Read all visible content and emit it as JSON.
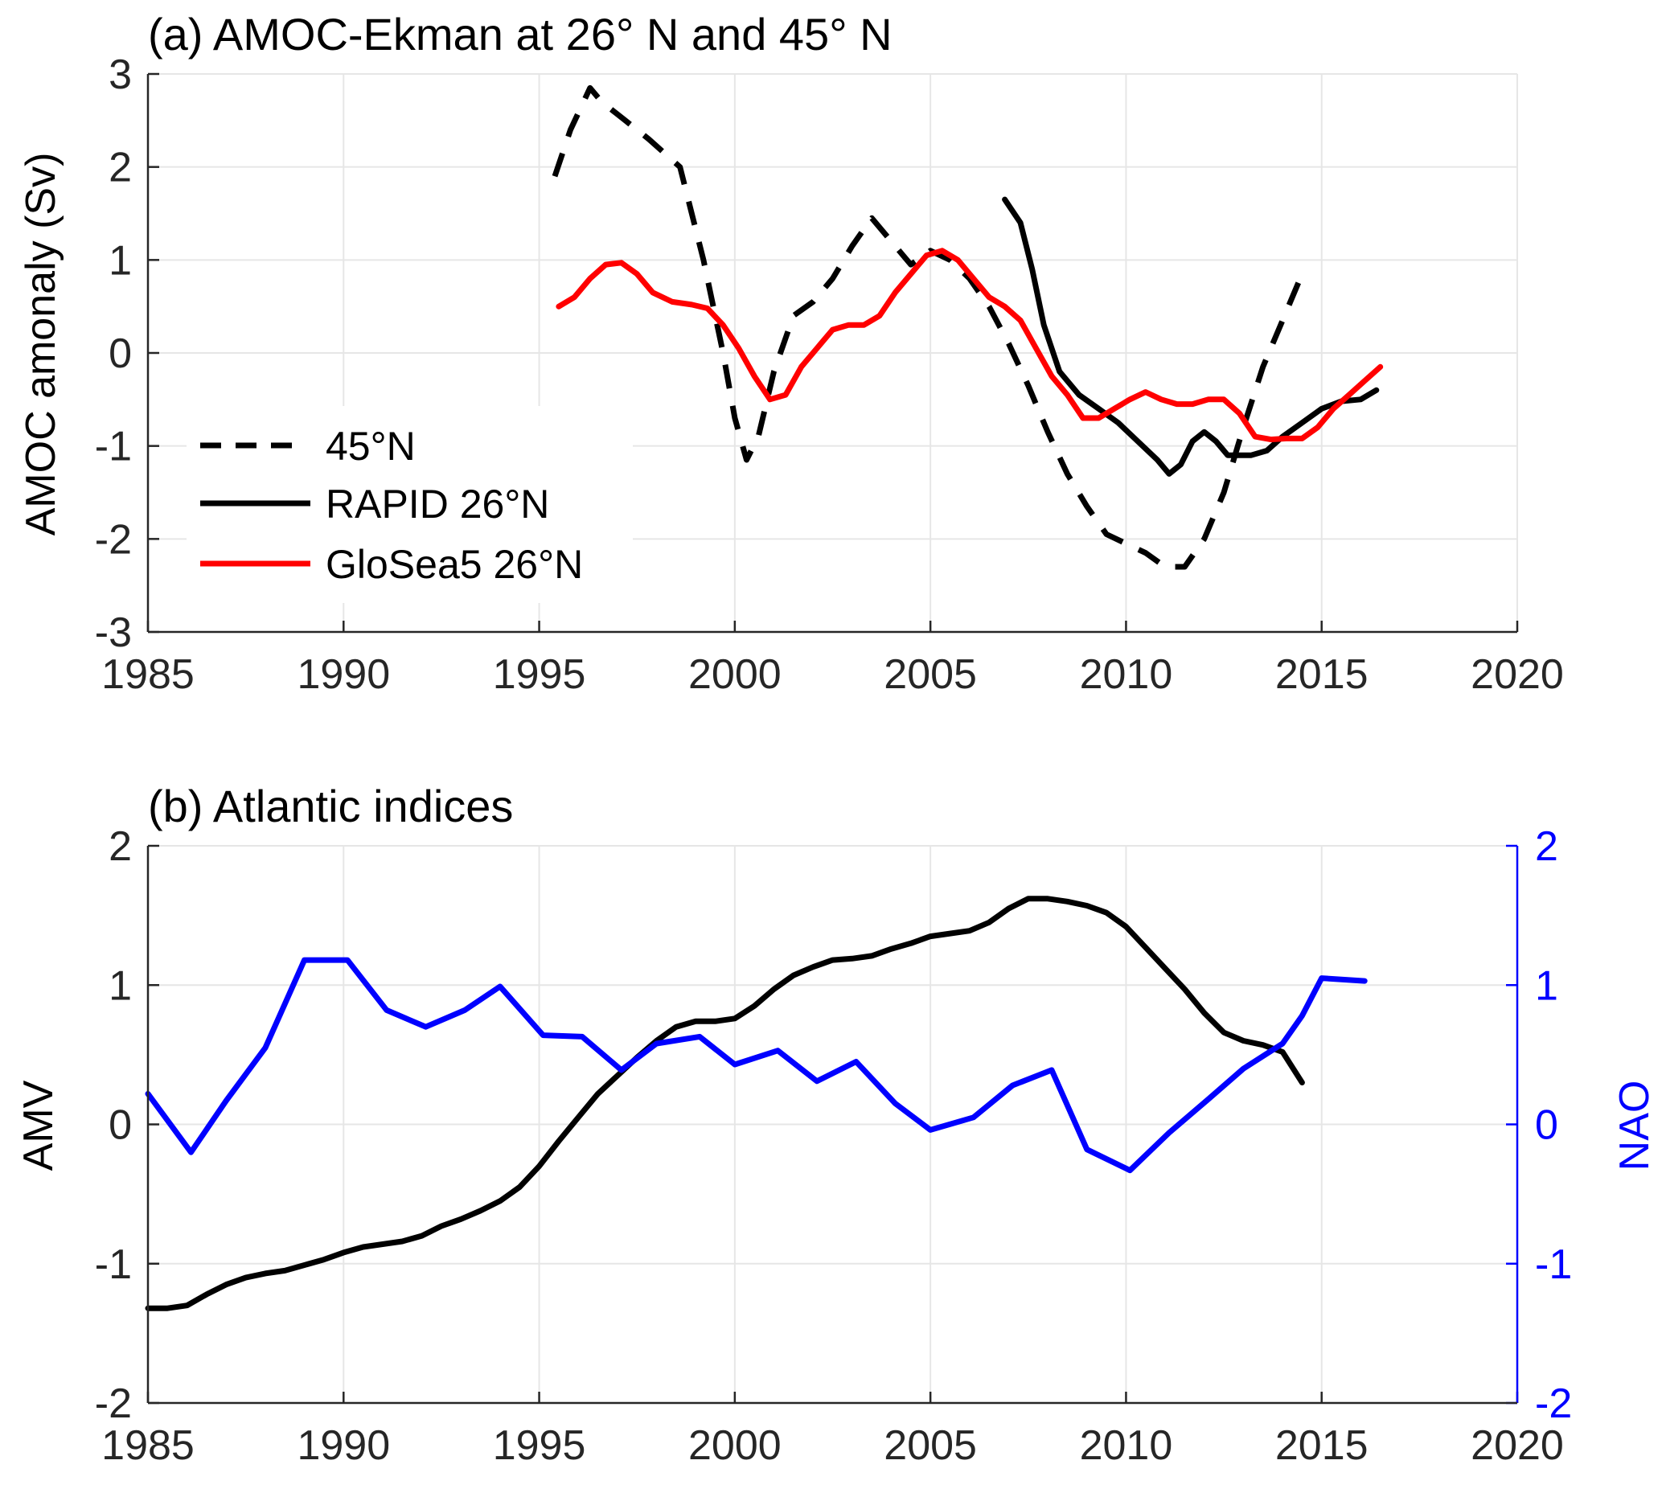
{
  "chart_data": [
    {
      "type": "line",
      "title": "(a) AMOC-Ekman at 26° N and 45° N",
      "ylabel": "AMOC amonaly (Sv)",
      "xlim": [
        1985,
        2020
      ],
      "ylim": [
        -3,
        3
      ],
      "xticks": [
        "1985",
        "1990",
        "1995",
        "2000",
        "2005",
        "2010",
        "2015",
        "2020"
      ],
      "yticks": [
        "3",
        "2",
        "1",
        "0",
        "-1",
        "-2",
        "-3"
      ],
      "grid": true,
      "legend_position": "lower-left",
      "series": [
        {
          "name": "45°N",
          "color": "#000000",
          "style": "dashed",
          "x": [
            1995.4,
            1995.8,
            1996.3,
            1996.6,
            1997.2,
            1997.8,
            1998.6,
            1999.2,
            1999.7,
            2000.0,
            2000.3,
            2000.6,
            2001.0,
            2001.5,
            2002.0,
            2002.5,
            2003.0,
            2003.5,
            2004.0,
            2004.5,
            2005.0,
            2005.5,
            2006.0,
            2006.5,
            2007.0,
            2007.5,
            2008.0,
            2008.5,
            2009.0,
            2009.5,
            2010.0,
            2010.5,
            2011.0,
            2011.5,
            2012.0,
            2012.5,
            2013.0,
            2013.5,
            2014.0,
            2014.5
          ],
          "y": [
            1.9,
            2.4,
            2.85,
            2.7,
            2.5,
            2.3,
            2.0,
            1.0,
            0.0,
            -0.7,
            -1.15,
            -0.9,
            -0.2,
            0.4,
            0.55,
            0.8,
            1.15,
            1.45,
            1.2,
            0.95,
            1.1,
            1.0,
            0.8,
            0.5,
            0.1,
            -0.35,
            -0.85,
            -1.3,
            -1.65,
            -1.95,
            -2.05,
            -2.15,
            -2.3,
            -2.3,
            -2.0,
            -1.5,
            -0.8,
            -0.15,
            0.35,
            0.85
          ]
        },
        {
          "name": "RAPID 26°N",
          "color": "#000000",
          "style": "solid",
          "x": [
            2006.9,
            2007.3,
            2007.6,
            2007.9,
            2008.3,
            2008.8,
            2009.3,
            2009.8,
            2010.3,
            2010.8,
            2011.1,
            2011.4,
            2011.7,
            2012.0,
            2012.3,
            2012.6,
            2012.9,
            2013.2,
            2013.6,
            2014.0,
            2014.5,
            2015.0,
            2015.5,
            2016.0,
            2016.4
          ],
          "y": [
            1.65,
            1.4,
            0.9,
            0.3,
            -0.2,
            -0.45,
            -0.6,
            -0.75,
            -0.95,
            -1.15,
            -1.3,
            -1.2,
            -0.95,
            -0.85,
            -0.95,
            -1.1,
            -1.1,
            -1.1,
            -1.05,
            -0.9,
            -0.75,
            -0.6,
            -0.52,
            -0.5,
            -0.4
          ]
        },
        {
          "name": "GloSea5 26°N",
          "color": "#ff0000",
          "style": "solid",
          "x": [
            1995.5,
            1995.9,
            1996.3,
            1996.7,
            1997.1,
            1997.5,
            1997.9,
            1998.4,
            1998.9,
            1999.3,
            1999.7,
            2000.1,
            2000.5,
            2000.9,
            2001.3,
            2001.7,
            2002.1,
            2002.5,
            2002.9,
            2003.3,
            2003.7,
            2004.1,
            2004.5,
            2004.9,
            2005.3,
            2005.7,
            2006.1,
            2006.5,
            2006.9,
            2007.3,
            2007.7,
            2008.1,
            2008.5,
            2008.9,
            2009.3,
            2009.7,
            2010.1,
            2010.5,
            2010.9,
            2011.3,
            2011.7,
            2012.1,
            2012.5,
            2012.9,
            2013.3,
            2013.7,
            2014.1,
            2014.5,
            2014.9,
            2015.3,
            2015.7,
            2016.1,
            2016.5
          ],
          "y": [
            0.5,
            0.6,
            0.8,
            0.95,
            0.97,
            0.85,
            0.65,
            0.55,
            0.52,
            0.48,
            0.3,
            0.05,
            -0.25,
            -0.5,
            -0.45,
            -0.15,
            0.05,
            0.25,
            0.3,
            0.3,
            0.4,
            0.65,
            0.85,
            1.05,
            1.1,
            1.0,
            0.8,
            0.6,
            0.5,
            0.35,
            0.05,
            -0.25,
            -0.45,
            -0.7,
            -0.7,
            -0.6,
            -0.5,
            -0.42,
            -0.5,
            -0.55,
            -0.55,
            -0.5,
            -0.5,
            -0.65,
            -0.9,
            -0.93,
            -0.92,
            -0.92,
            -0.8,
            -0.6,
            -0.45,
            -0.3,
            -0.15
          ]
        }
      ]
    },
    {
      "type": "line",
      "title": "(b) Atlantic indices",
      "ylabel": "AMV",
      "y2label": "NAO",
      "xlim": [
        1985,
        2020
      ],
      "ylim": [
        -2,
        2
      ],
      "y2lim": [
        -2,
        2
      ],
      "xticks": [
        "1985",
        "1990",
        "1995",
        "2000",
        "2005",
        "2010",
        "2015",
        "2020"
      ],
      "yticks": [
        "2",
        "1",
        "0",
        "-1",
        "-2"
      ],
      "y2ticks": [
        "2",
        "1",
        "0",
        "-1",
        "-2"
      ],
      "grid": true,
      "axis2_color": "#0000ff",
      "series": [
        {
          "name": "AMV",
          "color": "#000000",
          "axis": "left",
          "x": [
            1985.0,
            1985.5,
            1986.0,
            1986.5,
            1987.0,
            1987.5,
            1988.0,
            1988.5,
            1989.0,
            1989.5,
            1990.0,
            1990.5,
            1991.0,
            1991.5,
            1992.0,
            1992.5,
            1993.0,
            1993.5,
            1994.0,
            1994.5,
            1995.0,
            1995.5,
            1996.0,
            1996.5,
            1997.0,
            1997.5,
            1998.0,
            1998.5,
            1999.0,
            1999.5,
            2000.0,
            2000.5,
            2001.0,
            2001.5,
            2002.0,
            2002.5,
            2003.0,
            2003.5,
            2004.0,
            2004.5,
            2005.0,
            2005.5,
            2006.0,
            2006.5,
            2007.0,
            2007.5,
            2008.0,
            2008.5,
            2009.0,
            2009.5,
            2010.0,
            2010.5,
            2011.0,
            2011.5,
            2012.0,
            2012.5,
            2013.0,
            2013.5,
            2014.0,
            2014.5
          ],
          "y": [
            -1.32,
            -1.32,
            -1.3,
            -1.22,
            -1.15,
            -1.1,
            -1.07,
            -1.05,
            -1.01,
            -0.97,
            -0.92,
            -0.88,
            -0.86,
            -0.84,
            -0.8,
            -0.73,
            -0.68,
            -0.62,
            -0.55,
            -0.45,
            -0.3,
            -0.12,
            0.05,
            0.22,
            0.35,
            0.48,
            0.6,
            0.7,
            0.74,
            0.74,
            0.76,
            0.85,
            0.97,
            1.07,
            1.13,
            1.18,
            1.19,
            1.21,
            1.26,
            1.3,
            1.35,
            1.37,
            1.39,
            1.45,
            1.55,
            1.62,
            1.62,
            1.6,
            1.57,
            1.52,
            1.42,
            1.27,
            1.12,
            0.97,
            0.8,
            0.66,
            0.6,
            0.57,
            0.52,
            0.3
          ]
        },
        {
          "name": "NAO",
          "color": "#0000ff",
          "axis": "right",
          "x": [
            1985.0,
            1986.1,
            1987.0,
            1988.0,
            1989.0,
            1990.1,
            1991.1,
            1992.1,
            1993.1,
            1994.0,
            1995.1,
            1996.1,
            1997.1,
            1998.0,
            1999.1,
            2000.0,
            2001.1,
            2002.1,
            2003.1,
            2004.1,
            2005.0,
            2006.1,
            2007.1,
            2008.1,
            2009.0,
            2010.1,
            2011.1,
            2012.1,
            2013.0,
            2014.0,
            2014.5,
            2015.0,
            2016.1
          ],
          "y": [
            0.22,
            -0.2,
            0.17,
            0.55,
            1.18,
            1.18,
            0.82,
            0.7,
            0.82,
            0.99,
            0.64,
            0.63,
            0.39,
            0.58,
            0.63,
            0.43,
            0.53,
            0.31,
            0.45,
            0.15,
            -0.04,
            0.05,
            0.28,
            0.39,
            -0.18,
            -0.33,
            -0.06,
            0.18,
            0.4,
            0.58,
            0.78,
            1.05,
            1.03
          ]
        }
      ]
    }
  ]
}
